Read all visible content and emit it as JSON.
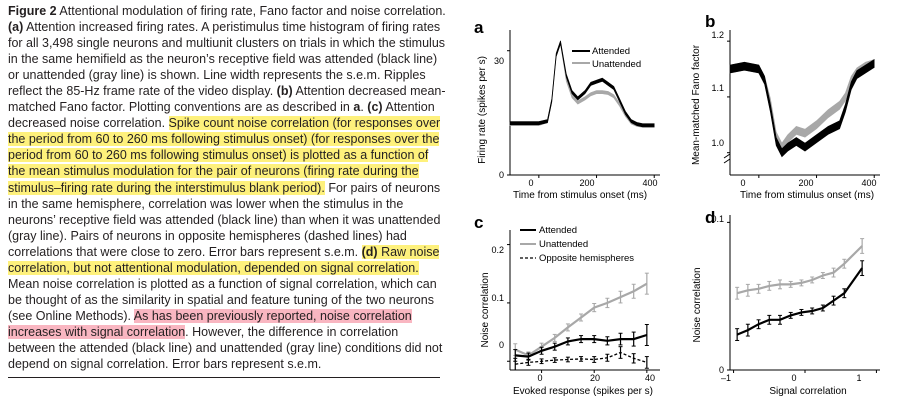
{
  "caption": {
    "figure_label": "Figure 2",
    "title": "Attentional modulation of firing rate, Fano factor and noise correlation.",
    "a_label": "(a)",
    "a_text": "Attention increased firing rates. A peristimulus time histogram of firing rates for all 3,498 single neurons and multiunit clusters on trials in which the stimulus in the same hemifield as the neuron’s receptive field was attended (black line) or unattended (gray line) is shown. Line width represents the s.e.m. Ripples reflect the 85-Hz frame rate of the video display.",
    "b_label": "(b)",
    "b_text_1": "Attention decreased mean-matched Fano factor. Plotting conventions are as described in",
    "b_text_bold": "a",
    "b_text_2": ".",
    "c_label": "(c)",
    "c_text": "Attention decreased noise correlation.",
    "c_highlight": "Spike count noise correlation (for responses over the period from 60 to 260 ms following stimulus onset) (for responses over the period from 60 to 260 ms following stimulus onset) is plotted as a function of the mean stimulus modulation for the pair of neurons (firing rate during the stimulus–firing rate during the interstimulus blank period).",
    "c_text_2": "For pairs of neurons in the same hemisphere, correlation was lower when the stimulus in the neurons’ receptive field was attended (black line) than when it was unattended (gray line). Pairs of neurons in opposite hemispheres (dashed lines) had correlations that were close to zero. Error bars represent s.e.m.",
    "d_label": "(d)",
    "d_highlight": "Raw noise correlation, but not attentional modulation, depended on signal correlation.",
    "d_text": "Mean noise correlation is plotted as a function of signal correlation, which can be thought of as the similarity in spatial and feature tuning of the two neurons (see Online Methods).",
    "d_pink": "As has been previously reported, noise correlation increases with signal correlation",
    "d_text_2": ". However, the difference in correlation between the attended (black line) and unattended (gray line) conditions did not depend on signal correlation. Error bars represent s.e.m."
  },
  "colors": {
    "highlight_yellow": "#fef17c",
    "highlight_pink": "#f9b6c1",
    "attended": "#000000",
    "unattended": "#a8a8a8"
  },
  "panels": {
    "a": {
      "letter": "a",
      "ylabel": "Firing rate (spikes per s)",
      "xlabel": "Time from stimulus onset (ms)",
      "legend_attended": "Attended",
      "legend_unattended": "Unattended",
      "yticks": [
        "0",
        "30"
      ],
      "xticks": [
        "0",
        "200",
        "400"
      ]
    },
    "b": {
      "letter": "b",
      "ylabel": "Mean-matched Fano factor",
      "xlabel": "Time from stimulus onset (ms)",
      "yticks": [
        "1.0",
        "1.1",
        "1.2"
      ],
      "xticks": [
        "0",
        "200",
        "400"
      ]
    },
    "c": {
      "letter": "c",
      "ylabel": "Noise correlation",
      "xlabel": "Evoked response (spikes per s)",
      "legend_attended": "Attended",
      "legend_unattended": "Unattended",
      "legend_opposite": "Opposite hemispheres",
      "yticks": [
        "0",
        "0.1",
        "0.2"
      ],
      "xticks": [
        "0",
        "20",
        "40"
      ]
    },
    "d": {
      "letter": "d",
      "ylabel": "Noise correlation",
      "xlabel": "Signal correlation",
      "yticks": [
        "0",
        "0.1"
      ],
      "xticks": [
        "–1",
        "0",
        "1"
      ]
    }
  },
  "chart_data": [
    {
      "panel": "a",
      "type": "line",
      "xlabel": "Time from stimulus onset (ms)",
      "ylabel": "Firing rate (spikes per s)",
      "xlim": [
        -100,
        420
      ],
      "ylim": [
        0,
        35
      ],
      "series": [
        {
          "name": "Attended",
          "x": [
            -100,
            -50,
            0,
            30,
            45,
            60,
            75,
            95,
            115,
            135,
            160,
            180,
            200,
            220,
            240,
            260,
            280,
            300,
            320,
            340,
            360,
            400
          ],
          "y": [
            12.5,
            12.5,
            12.5,
            13,
            18,
            29,
            32,
            24,
            20,
            18.5,
            20,
            22,
            22.5,
            23,
            22,
            21,
            18,
            15,
            13,
            12.3,
            12,
            12
          ]
        },
        {
          "name": "Unattended",
          "x": [
            -100,
            -50,
            0,
            30,
            45,
            60,
            75,
            95,
            115,
            135,
            160,
            180,
            200,
            220,
            240,
            260,
            280,
            300,
            320,
            340,
            360,
            400
          ],
          "y": [
            12.3,
            12.3,
            12.3,
            13,
            18,
            29,
            32,
            23,
            19,
            17.5,
            18.5,
            19.5,
            20,
            20,
            19.8,
            19,
            17,
            14.5,
            12.7,
            12.1,
            11.9,
            11.9
          ]
        }
      ]
    },
    {
      "panel": "b",
      "type": "line",
      "xlabel": "Time from stimulus onset (ms)",
      "ylabel": "Mean-matched Fano factor",
      "xlim": [
        -100,
        420
      ],
      "ylim": [
        0.96,
        1.22
      ],
      "series": [
        {
          "name": "Attended",
          "x": [
            -100,
            -50,
            0,
            20,
            40,
            60,
            80,
            100,
            130,
            160,
            200,
            240,
            280,
            300,
            320,
            340,
            370,
            400
          ],
          "y": [
            1.15,
            1.155,
            1.15,
            1.13,
            1.08,
            1.02,
            1.0,
            1.01,
            1.02,
            1.01,
            1.025,
            1.04,
            1.05,
            1.08,
            1.12,
            1.14,
            1.15,
            1.16
          ]
        },
        {
          "name": "Unattended",
          "x": [
            -100,
            -50,
            0,
            20,
            40,
            60,
            80,
            100,
            130,
            160,
            200,
            240,
            280,
            300,
            320,
            340,
            370,
            400
          ],
          "y": [
            1.15,
            1.155,
            1.15,
            1.13,
            1.09,
            1.03,
            1.01,
            1.025,
            1.04,
            1.035,
            1.05,
            1.07,
            1.085,
            1.1,
            1.13,
            1.145,
            1.155,
            1.16
          ]
        }
      ]
    },
    {
      "panel": "c",
      "type": "line",
      "xlabel": "Evoked response (spikes per s)",
      "ylabel": "Noise correlation",
      "xlim": [
        -12,
        45
      ],
      "ylim": [
        -0.015,
        0.225
      ],
      "series": [
        {
          "name": "Attended",
          "x": [
            -10,
            -5,
            0,
            5,
            10,
            15,
            20,
            25,
            30,
            35,
            40
          ],
          "y": [
            0.01,
            0.008,
            0.018,
            0.025,
            0.034,
            0.038,
            0.038,
            0.035,
            0.038,
            0.038,
            0.045
          ],
          "err": [
            0.01,
            0.006,
            0.006,
            0.006,
            0.006,
            0.006,
            0.006,
            0.007,
            0.01,
            0.012,
            0.018
          ]
        },
        {
          "name": "Unattended",
          "x": [
            -10,
            -5,
            0,
            5,
            10,
            15,
            20,
            25,
            30,
            35,
            40
          ],
          "y": [
            0.02,
            0.01,
            0.025,
            0.04,
            0.058,
            0.075,
            0.092,
            0.1,
            0.11,
            0.12,
            0.133
          ],
          "err": [
            0.01,
            0.006,
            0.006,
            0.006,
            0.006,
            0.006,
            0.007,
            0.008,
            0.01,
            0.012,
            0.018
          ]
        },
        {
          "name": "Opposite hemispheres",
          "x": [
            -10,
            -5,
            0,
            5,
            10,
            15,
            20,
            25,
            30,
            35,
            40
          ],
          "y": [
            -0.005,
            -0.002,
            0.0,
            0.002,
            0.003,
            0.004,
            0.003,
            0.006,
            0.015,
            0.005,
            -0.002
          ],
          "err": [
            0.01,
            0.005,
            0.004,
            0.004,
            0.004,
            0.004,
            0.005,
            0.006,
            0.01,
            0.008,
            0.01
          ]
        }
      ]
    },
    {
      "panel": "d",
      "type": "line",
      "xlabel": "Signal correlation",
      "ylabel": "Noise correlation",
      "xlim": [
        -1.05,
        1.05
      ],
      "ylim": [
        0,
        0.105
      ],
      "series": [
        {
          "name": "Attended",
          "x": [
            -0.95,
            -0.8,
            -0.65,
            -0.5,
            -0.35,
            -0.2,
            -0.05,
            0.1,
            0.25,
            0.4,
            0.55,
            0.8
          ],
          "y": [
            0.024,
            0.027,
            0.031,
            0.034,
            0.034,
            0.037,
            0.039,
            0.04,
            0.042,
            0.047,
            0.052,
            0.069
          ],
          "err": [
            0.004,
            0.004,
            0.003,
            0.003,
            0.003,
            0.002,
            0.002,
            0.002,
            0.002,
            0.003,
            0.003,
            0.005
          ]
        },
        {
          "name": "Unattended",
          "x": [
            -0.95,
            -0.8,
            -0.65,
            -0.5,
            -0.35,
            -0.2,
            -0.05,
            0.1,
            0.25,
            0.4,
            0.55,
            0.8
          ],
          "y": [
            0.052,
            0.054,
            0.055,
            0.057,
            0.058,
            0.058,
            0.059,
            0.061,
            0.064,
            0.066,
            0.072,
            0.084
          ],
          "err": [
            0.004,
            0.004,
            0.003,
            0.003,
            0.003,
            0.002,
            0.002,
            0.002,
            0.002,
            0.003,
            0.003,
            0.005
          ]
        }
      ]
    }
  ]
}
